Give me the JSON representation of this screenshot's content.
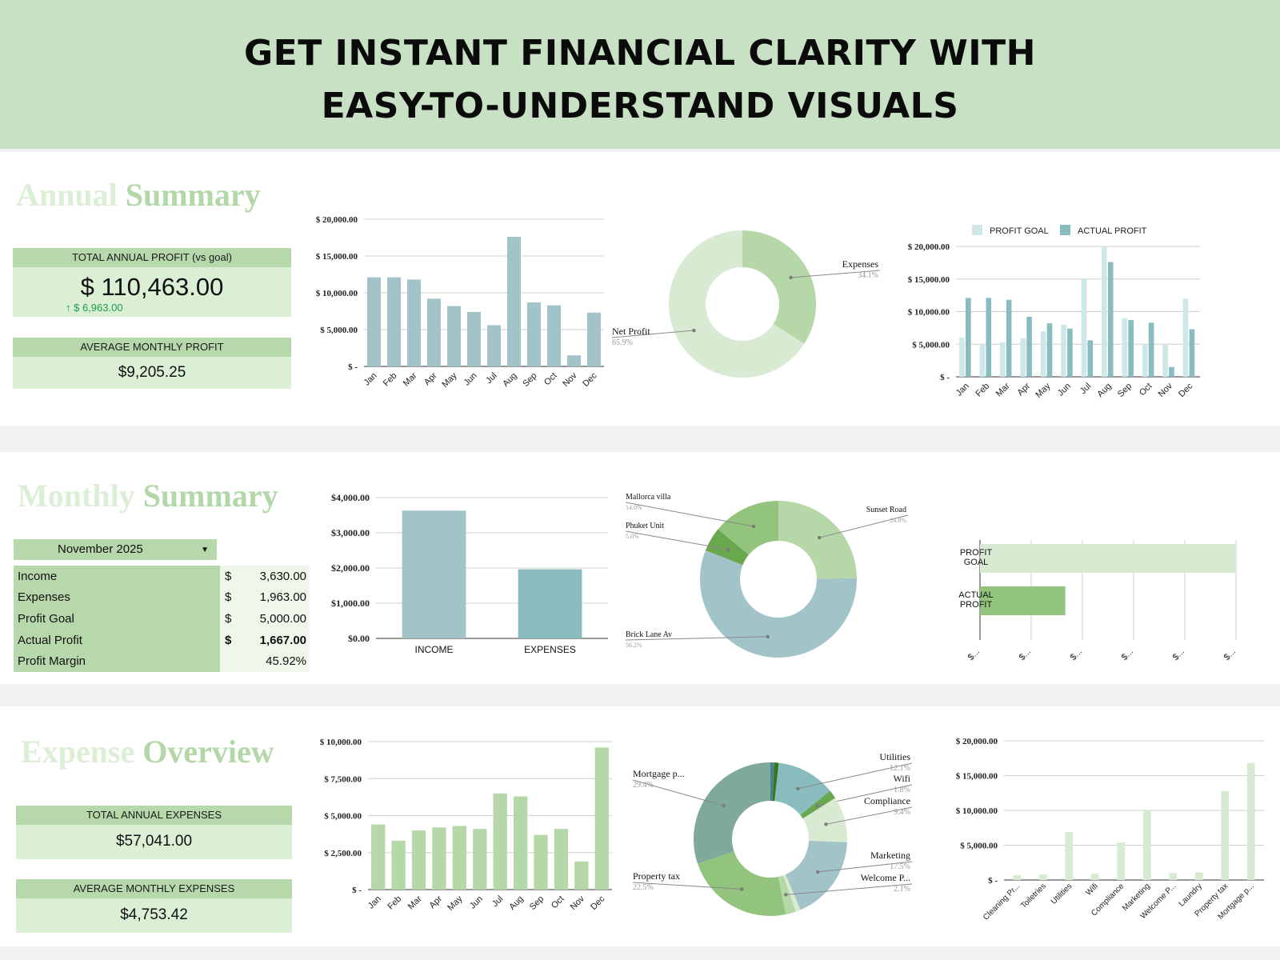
{
  "banner": {
    "line1": "GET INSTANT FINANCIAL CLARITY WITH",
    "line2": "EASY-TO-UNDERSTAND VISUALS"
  },
  "colors": {
    "banner": "#c8e0c3",
    "teal": "#a2c4c9",
    "green": "#b6d7a8",
    "darkgreen": "#93c47d",
    "teal2": "#88bcbf"
  },
  "annual": {
    "title_a": "Annual",
    "title_b": "Summary",
    "total_label": "TOTAL ANNUAL PROFIT (vs goal)",
    "total_value": "$ 110,463.00",
    "delta": "↑ $ 6,963.00",
    "avg_label": "AVERAGE MONTHLY PROFIT",
    "avg_value": "$9,205.25"
  },
  "monthly": {
    "title_a": "Monthly",
    "title_b": "Summary",
    "selected_month": "November 2025",
    "rows": [
      {
        "label": "Income",
        "cur": "$",
        "value": "3,630.00"
      },
      {
        "label": "Expenses",
        "cur": "$",
        "value": "1,963.00"
      },
      {
        "label": "Profit Goal",
        "cur": "$",
        "value": "5,000.00"
      },
      {
        "label": "Actual Profit",
        "cur": "$",
        "value": "1,667.00"
      },
      {
        "label": "Profit Margin",
        "cur": "",
        "value": "45.92%"
      }
    ]
  },
  "expense": {
    "title_a": "Expense",
    "title_b": "Overview",
    "total_label": "TOTAL ANNUAL EXPENSES",
    "total_value": "$57,041.00",
    "avg_label": "AVERAGE MONTHLY EXPENSES",
    "avg_value": "$4,753.42"
  },
  "chart_data": [
    {
      "id": "annual_profit_bar",
      "type": "bar",
      "categories": [
        "Jan",
        "Feb",
        "Mar",
        "Apr",
        "May",
        "Jun",
        "Jul",
        "Aug",
        "Sep",
        "Oct",
        "Nov",
        "Dec"
      ],
      "values": [
        12100,
        12100,
        11800,
        9200,
        8200,
        7400,
        5600,
        17600,
        8700,
        8300,
        1500,
        7300
      ],
      "ylim": [
        0,
        20000
      ],
      "yticks": [
        "$ -",
        "$ 5,000.00",
        "$ 10,000.00",
        "$ 15,000.00",
        "$ 20,000.00"
      ],
      "color": "#a2c4c9"
    },
    {
      "id": "annual_pie",
      "type": "pie",
      "slices": [
        {
          "name": "Expenses",
          "pct": "34.1%",
          "value": 34.1,
          "color": "#b6d7a8"
        },
        {
          "name": "Net Profit",
          "pct": "65.9%",
          "value": 65.9,
          "color": "#d9ead3"
        }
      ]
    },
    {
      "id": "annual_goal_bar",
      "type": "bar",
      "categories": [
        "Jan",
        "Feb",
        "Mar",
        "Apr",
        "May",
        "Jun",
        "Jul",
        "Aug",
        "Sep",
        "Oct",
        "Nov",
        "Dec"
      ],
      "series": [
        {
          "name": "PROFIT GOAL",
          "values": [
            6000,
            5000,
            5300,
            5900,
            7000,
            8000,
            15000,
            20000,
            9000,
            5000,
            5000,
            12000
          ],
          "color": "#cde8e6"
        },
        {
          "name": "ACTUAL PROFIT",
          "values": [
            12100,
            12100,
            11800,
            9200,
            8200,
            7400,
            5600,
            17600,
            8700,
            8300,
            1500,
            7300
          ],
          "color": "#88bcbf"
        }
      ],
      "ylim": [
        0,
        20000
      ],
      "yticks": [
        "$ -",
        "$ 5,000.00",
        "$ 10,000.00",
        "$ 15,000.00",
        "$ 20,000.00"
      ]
    },
    {
      "id": "monthly_income_bar",
      "type": "bar",
      "categories": [
        "INCOME",
        "EXPENSES"
      ],
      "values": [
        3630,
        1963
      ],
      "ylim": [
        0,
        4000
      ],
      "yticks": [
        "$0.00",
        "$1,000.00",
        "$2,000.00",
        "$3,000.00",
        "$4,000.00"
      ],
      "colors": [
        "#a2c4c9",
        "#88bcbf"
      ]
    },
    {
      "id": "monthly_property_pie",
      "type": "pie",
      "slices": [
        {
          "name": "Sunset Road",
          "pct": "24.8%",
          "value": 24.8,
          "color": "#b6d7a8"
        },
        {
          "name": "Brick Lane Av",
          "pct": "56.2%",
          "value": 56.2,
          "color": "#a2c4c9"
        },
        {
          "name": "Phuket Unit",
          "pct": "5.0%",
          "value": 5.0,
          "color": "#6aa84f"
        },
        {
          "name": "Mallorca villa",
          "pct": "14.0%",
          "value": 14.0,
          "color": "#93c47d"
        }
      ]
    },
    {
      "id": "monthly_goal_hbar",
      "type": "bar",
      "categories": [
        "PROFIT GOAL",
        "ACTUAL PROFIT"
      ],
      "values": [
        5000,
        1667
      ],
      "colors": [
        "#d9ead3",
        "#93c47d"
      ],
      "xmax": 5000,
      "xticks": [
        "$...",
        "$...",
        "$...",
        "$...",
        "$...",
        "$..."
      ]
    },
    {
      "id": "expense_month_bar",
      "type": "bar",
      "categories": [
        "Jan",
        "Feb",
        "Mar",
        "Apr",
        "May",
        "Jun",
        "Jul",
        "Aug",
        "Sep",
        "Oct",
        "Nov",
        "Dec"
      ],
      "values": [
        4400,
        3300,
        4000,
        4200,
        4300,
        4100,
        6500,
        6300,
        3700,
        4100,
        1900,
        9600
      ],
      "ylim": [
        0,
        10000
      ],
      "yticks": [
        "$ -",
        "$ 2,500.00",
        "$ 5,000.00",
        "$ 7,500.00",
        "$ 10,000.00"
      ],
      "color": "#b6d7a8"
    },
    {
      "id": "expense_category_pie",
      "type": "pie",
      "slices": [
        {
          "name": "",
          "pct": "",
          "value": 0.8,
          "color": "#45818e"
        },
        {
          "name": "",
          "pct": "",
          "value": 0.9,
          "color": "#38761d"
        },
        {
          "name": "Utilities",
          "pct": "12.1%",
          "value": 12.1,
          "color": "#88bcbf"
        },
        {
          "name": "Wifi",
          "pct": "1.8%",
          "value": 1.8,
          "color": "#6aa84f"
        },
        {
          "name": "Compliance",
          "pct": "9.4%",
          "value": 9.4,
          "color": "#d9ead3"
        },
        {
          "name": "Marketing",
          "pct": "17.5%",
          "value": 17.5,
          "color": "#a2c4c9"
        },
        {
          "name": "",
          "pct": "",
          "value": 1.0,
          "color": "#d9ead3"
        },
        {
          "name": "Welcome P...",
          "pct": "2.1%",
          "value": 2.1,
          "color": "#b6d7a8"
        },
        {
          "name": "Property tax",
          "pct": "22.5%",
          "value": 22.5,
          "color": "#93c47d"
        },
        {
          "name": "Mortgage p...",
          "pct": "29.4%",
          "value": 29.4,
          "color": "#7fa99b"
        }
      ]
    },
    {
      "id": "expense_category_bar",
      "type": "bar",
      "categories": [
        "Cleaning Pr...",
        "Toiletries",
        "Utilities",
        "Wifi",
        "Compliance",
        "Marketing",
        "Welcome P...",
        "Laundry",
        "Property tax",
        "Mortgage p..."
      ],
      "values": [
        700,
        800,
        6900,
        900,
        5400,
        10000,
        1000,
        1100,
        12800,
        16800
      ],
      "ylim": [
        0,
        20000
      ],
      "yticks": [
        "$ -",
        "$ 5,000.00",
        "$ 10,000.00",
        "$ 15,000.00",
        "$ 20,000.00"
      ],
      "color": "#d9ead3"
    }
  ]
}
